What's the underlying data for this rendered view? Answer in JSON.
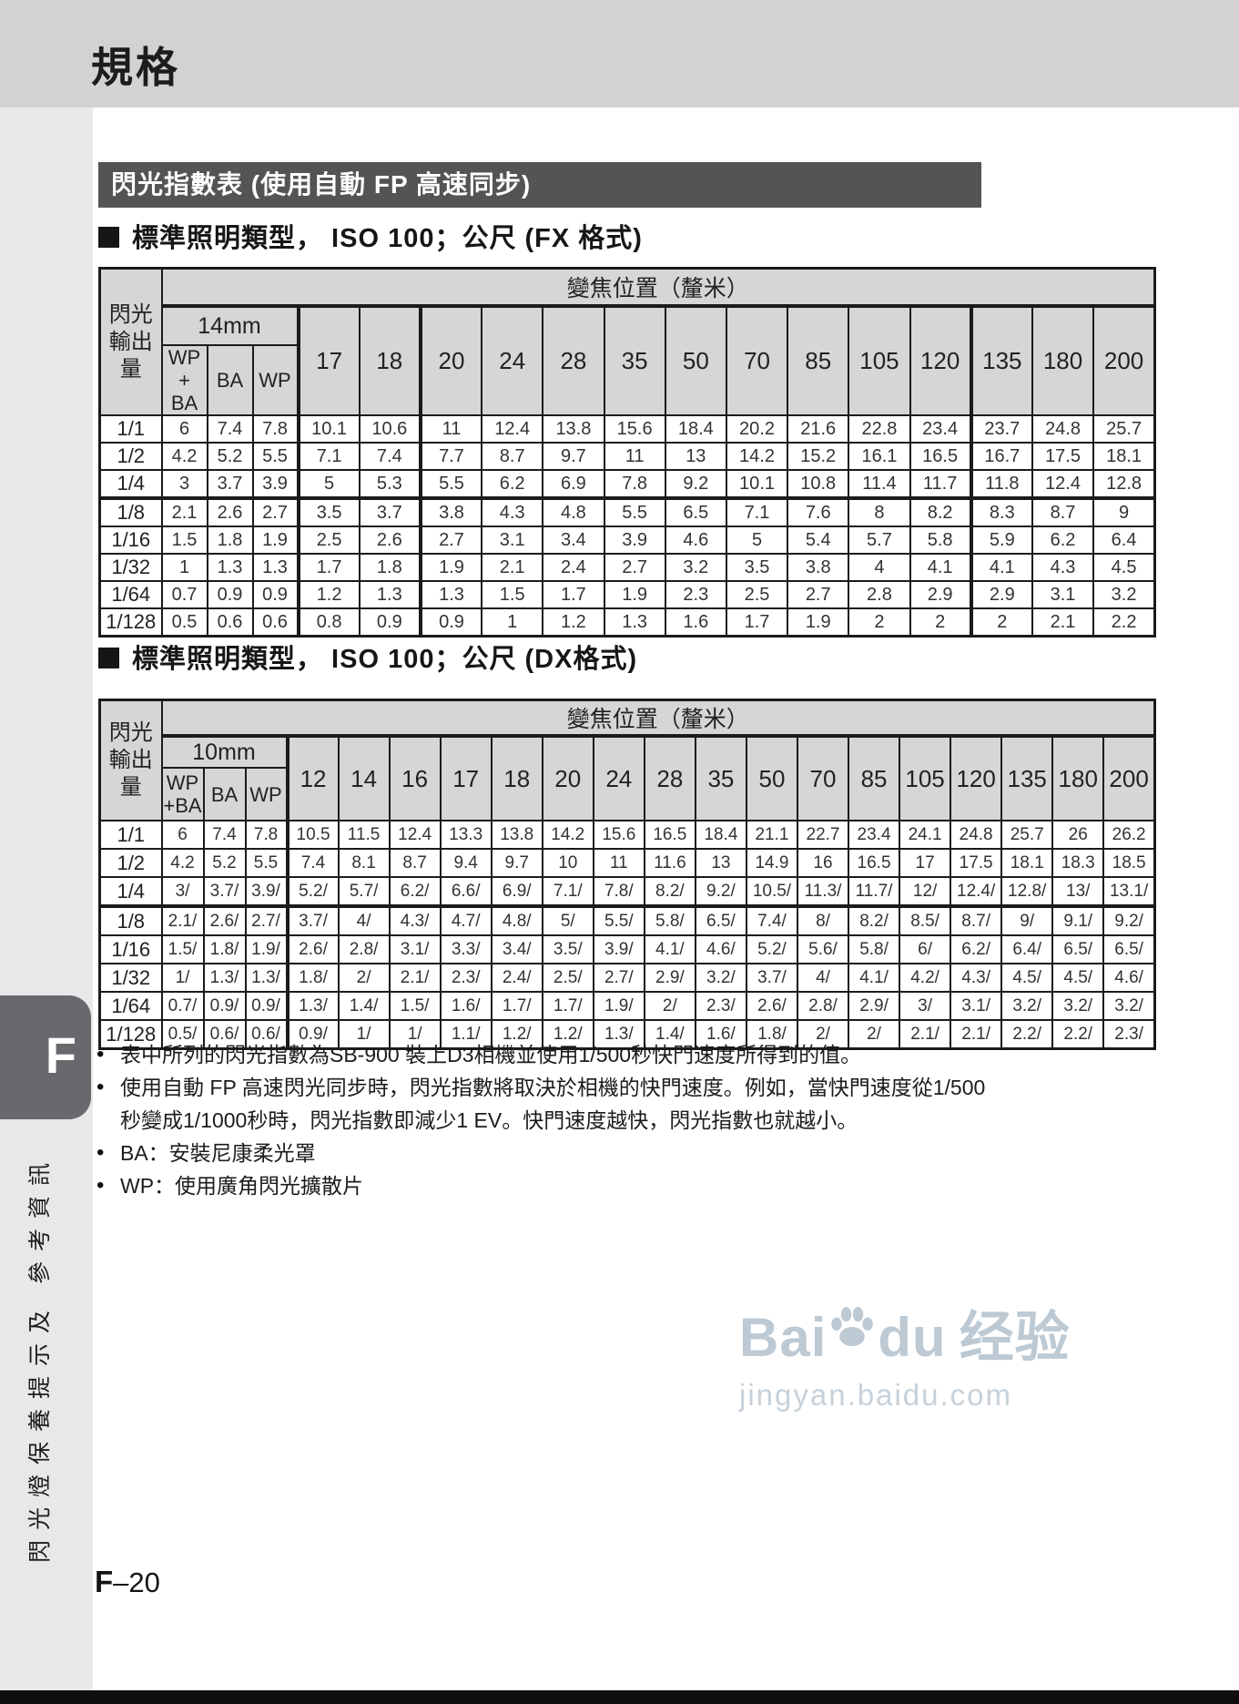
{
  "page": {
    "title": "規格",
    "section_bar_title": "閃光指數表 (使用自動 FP 高速同步)",
    "page_number": {
      "prefix": "F",
      "suffix": "–20"
    }
  },
  "sidebar": {
    "tab_label": "F",
    "vertical_label": "閃光燈保養提示及 參考資訊"
  },
  "sections": {
    "fx_heading": "標準照明類型， ISO 100；公尺 (FX 格式)",
    "dx_heading": "標準照明類型， ISO 100；公尺 (DX格式)"
  },
  "fx_table": {
    "corner_label": "閃光輸出量",
    "zoom_header": "變焦位置（釐米）",
    "group_label": "14mm",
    "sub_headers": [
      "WP +\nBA",
      "BA",
      "WP"
    ],
    "focal_columns": [
      "17",
      "18",
      "20",
      "24",
      "28",
      "35",
      "50",
      "70",
      "85",
      "105",
      "120",
      "135",
      "180",
      "200"
    ],
    "rows": [
      {
        "output": "1/1",
        "values": [
          "6",
          "7.4",
          "7.8",
          "10.1",
          "10.6",
          "11",
          "12.4",
          "13.8",
          "15.6",
          "18.4",
          "20.2",
          "21.6",
          "22.8",
          "23.4",
          "23.7",
          "24.8",
          "25.7"
        ]
      },
      {
        "output": "1/2",
        "values": [
          "4.2",
          "5.2",
          "5.5",
          "7.1",
          "7.4",
          "7.7",
          "8.7",
          "9.7",
          "11",
          "13",
          "14.2",
          "15.2",
          "16.1",
          "16.5",
          "16.7",
          "17.5",
          "18.1"
        ]
      },
      {
        "output": "1/4",
        "values": [
          "3",
          "3.7",
          "3.9",
          "5",
          "5.3",
          "5.5",
          "6.2",
          "6.9",
          "7.8",
          "9.2",
          "10.1",
          "10.8",
          "11.4",
          "11.7",
          "11.8",
          "12.4",
          "12.8"
        ]
      },
      {
        "output": "1/8",
        "values": [
          "2.1",
          "2.6",
          "2.7",
          "3.5",
          "3.7",
          "3.8",
          "4.3",
          "4.8",
          "5.5",
          "6.5",
          "7.1",
          "7.6",
          "8",
          "8.2",
          "8.3",
          "8.7",
          "9"
        ]
      },
      {
        "output": "1/16",
        "values": [
          "1.5",
          "1.8",
          "1.9",
          "2.5",
          "2.6",
          "2.7",
          "3.1",
          "3.4",
          "3.9",
          "4.6",
          "5",
          "5.4",
          "5.7",
          "5.8",
          "5.9",
          "6.2",
          "6.4"
        ]
      },
      {
        "output": "1/32",
        "values": [
          "1",
          "1.3",
          "1.3",
          "1.7",
          "1.8",
          "1.9",
          "2.1",
          "2.4",
          "2.7",
          "3.2",
          "3.5",
          "3.8",
          "4",
          "4.1",
          "4.1",
          "4.3",
          "4.5"
        ]
      },
      {
        "output": "1/64",
        "values": [
          "0.7",
          "0.9",
          "0.9",
          "1.2",
          "1.3",
          "1.3",
          "1.5",
          "1.7",
          "1.9",
          "2.3",
          "2.5",
          "2.7",
          "2.8",
          "2.9",
          "2.9",
          "3.1",
          "3.2"
        ]
      },
      {
        "output": "1/128",
        "values": [
          "0.5",
          "0.6",
          "0.6",
          "0.8",
          "0.9",
          "0.9",
          "1",
          "1.2",
          "1.3",
          "1.6",
          "1.7",
          "1.9",
          "2",
          "2",
          "2",
          "2.1",
          "2.2"
        ]
      }
    ]
  },
  "dx_table": {
    "corner_label": "閃光輸出量",
    "zoom_header": "變焦位置（釐米）",
    "group_label": "10mm",
    "sub_headers": [
      "WP\n+BA",
      "BA",
      "WP"
    ],
    "focal_columns": [
      "12",
      "14",
      "16",
      "17",
      "18",
      "20",
      "24",
      "28",
      "35",
      "50",
      "70",
      "85",
      "105",
      "120",
      "135",
      "180",
      "200"
    ],
    "rows": [
      {
        "output": "1/1",
        "values": [
          "6",
          "7.4",
          "7.8",
          "10.5",
          "11.5",
          "12.4",
          "13.3",
          "13.8",
          "14.2",
          "15.6",
          "16.5",
          "18.4",
          "21.1",
          "22.7",
          "23.4",
          "24.1",
          "24.8",
          "25.7",
          "26",
          "26.2"
        ]
      },
      {
        "output": "1/2",
        "values": [
          "4.2",
          "5.2",
          "5.5",
          "7.4",
          "8.1",
          "8.7",
          "9.4",
          "9.7",
          "10",
          "11",
          "11.6",
          "13",
          "14.9",
          "16",
          "16.5",
          "17",
          "17.5",
          "18.1",
          "18.3",
          "18.5"
        ]
      },
      {
        "output": "1/4",
        "values": [
          "3/",
          "3.7/",
          "3.9/",
          "5.2/",
          "5.7/",
          "6.2/",
          "6.6/",
          "6.9/",
          "7.1/",
          "7.8/",
          "8.2/",
          "9.2/",
          "10.5/",
          "11.3/",
          "11.7/",
          "12/",
          "12.4/",
          "12.8/",
          "13/",
          "13.1/"
        ]
      },
      {
        "output": "1/8",
        "values": [
          "2.1/",
          "2.6/",
          "2.7/",
          "3.7/",
          "4/",
          "4.3/",
          "4.7/",
          "4.8/",
          "5/",
          "5.5/",
          "5.8/",
          "6.5/",
          "7.4/",
          "8/",
          "8.2/",
          "8.5/",
          "8.7/",
          "9/",
          "9.1/",
          "9.2/"
        ]
      },
      {
        "output": "1/16",
        "values": [
          "1.5/",
          "1.8/",
          "1.9/",
          "2.6/",
          "2.8/",
          "3.1/",
          "3.3/",
          "3.4/",
          "3.5/",
          "3.9/",
          "4.1/",
          "4.6/",
          "5.2/",
          "5.6/",
          "5.8/",
          "6/",
          "6.2/",
          "6.4/",
          "6.5/",
          "6.5/"
        ]
      },
      {
        "output": "1/32",
        "values": [
          "1/",
          "1.3/",
          "1.3/",
          "1.8/",
          "2/",
          "2.1/",
          "2.3/",
          "2.4/",
          "2.5/",
          "2.7/",
          "2.9/",
          "3.2/",
          "3.7/",
          "4/",
          "4.1/",
          "4.2/",
          "4.3/",
          "4.5/",
          "4.5/",
          "4.6/"
        ]
      },
      {
        "output": "1/64",
        "values": [
          "0.7/",
          "0.9/",
          "0.9/",
          "1.3/",
          "1.4/",
          "1.5/",
          "1.6/",
          "1.7/",
          "1.7/",
          "1.9/",
          "2/",
          "2.3/",
          "2.6/",
          "2.8/",
          "2.9/",
          "3/",
          "3.1/",
          "3.2/",
          "3.2/",
          "3.2/"
        ]
      },
      {
        "output": "1/128",
        "values": [
          "0.5/",
          "0.6/",
          "0.6/",
          "0.9/",
          "1/",
          "1/",
          "1.1/",
          "1.2/",
          "1.2/",
          "1.3/",
          "1.4/",
          "1.6/",
          "1.8/",
          "2/",
          "2/",
          "2.1/",
          "2.1/",
          "2.2/",
          "2.2/",
          "2.3/"
        ]
      }
    ]
  },
  "notes": [
    "表中所列的閃光指數為SB-900 裝上D3相機並使用1/500秒快門速度所得到的值。",
    "使用自動 FP 高速閃光同步時，閃光指數將取決於相機的快門速度。例如，當快門速度從1/500秒變成1/1000秒時，閃光指數即減少1 EV。快門速度越快，閃光指數也就越小。",
    "BA：安裝尼康柔光罩",
    "WP：使用廣角閃光擴散片"
  ],
  "watermark": {
    "brand_prefix": "Bai",
    "brand_suffix": "du",
    "brand_cn": "经验",
    "url": "jingyan.baidu.com"
  }
}
